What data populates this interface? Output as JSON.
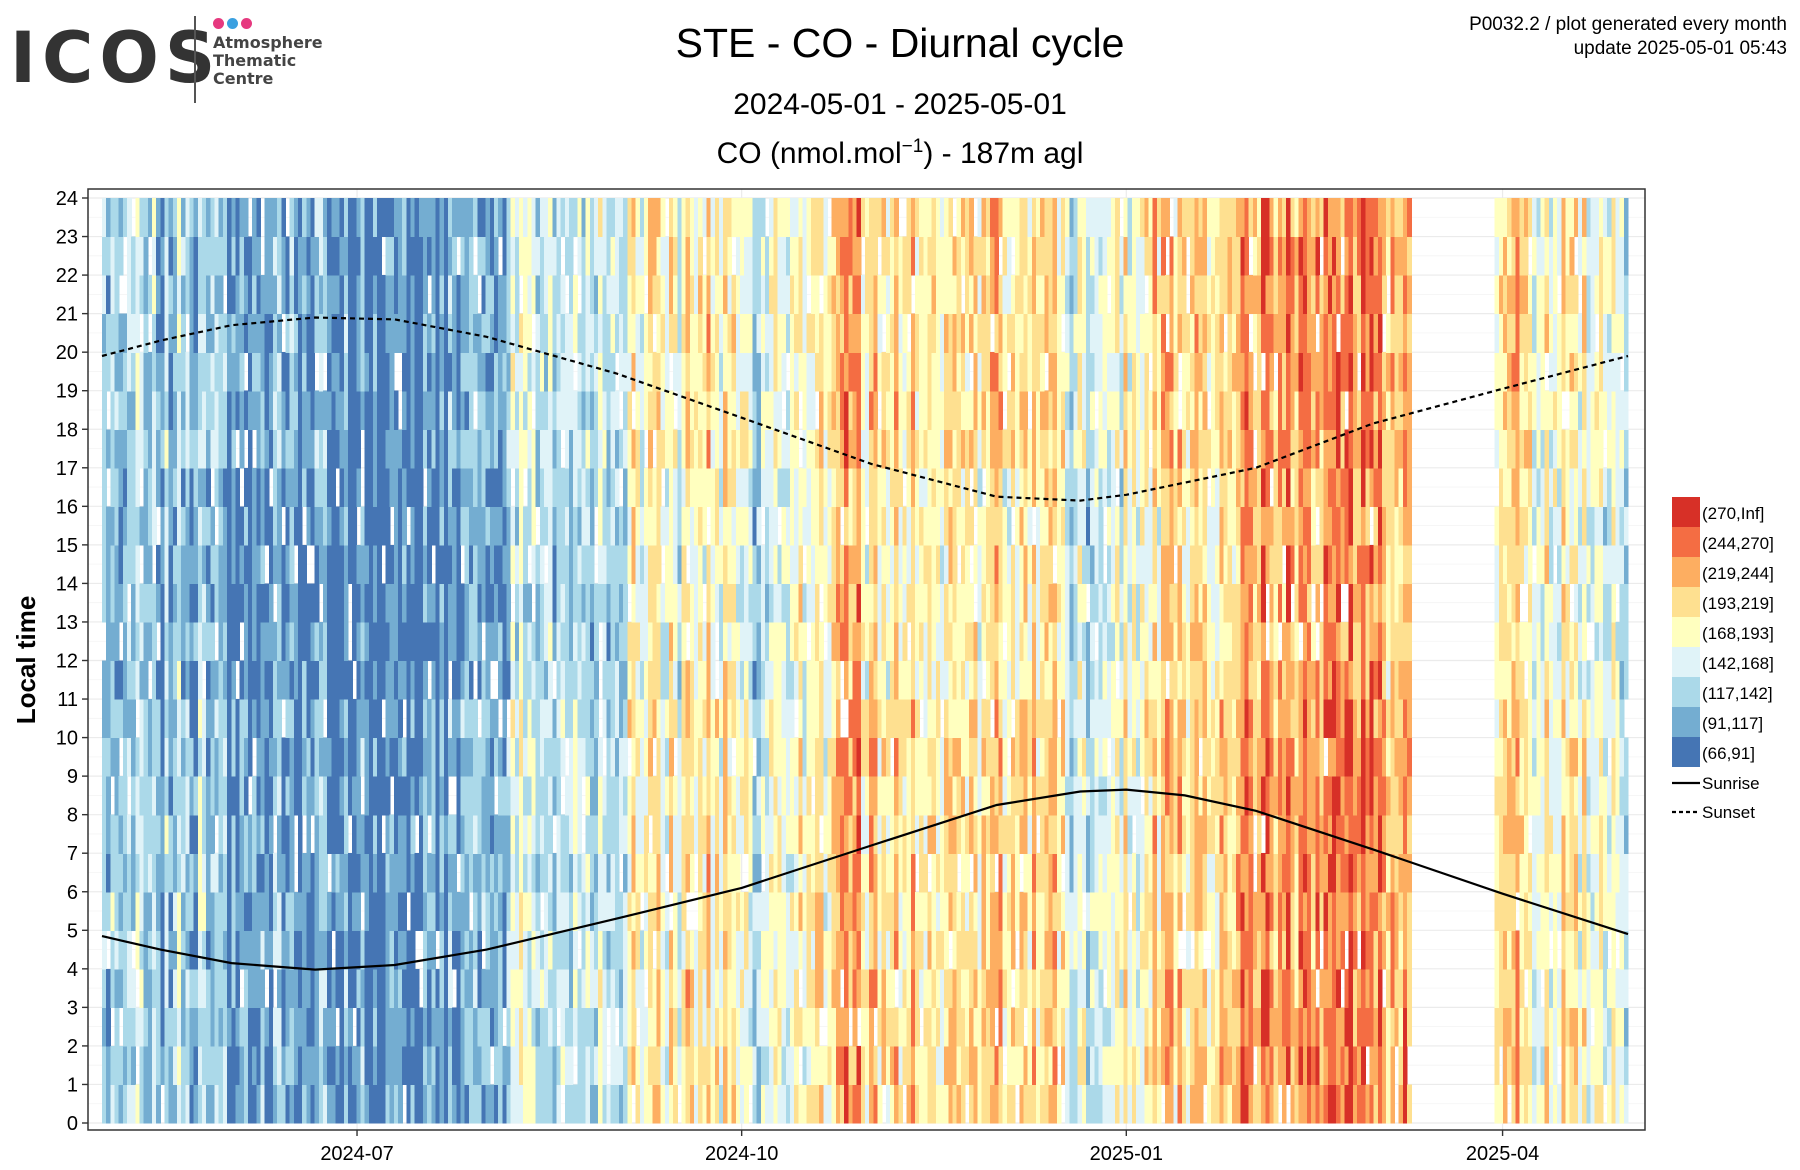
{
  "header": {
    "logo_text": "ICOS",
    "logo_sub": [
      "Atmosphere",
      "Thematic",
      "Centre"
    ],
    "logo_dot_colors": [
      "#e6397f",
      "#3aa0e0",
      "#e6397f"
    ],
    "title": "STE - CO - Diurnal cycle",
    "subtitle": "2024-05-01 - 2025-05-01",
    "unit_prefix": "CO (nmol.mol",
    "unit_exp": "−1",
    "unit_suffix": ") - 187m agl",
    "corner_line1": "P0032.2 / plot generated every month",
    "corner_line2": "update  2025-05-01 05:43"
  },
  "chart_data": {
    "type": "heatmap",
    "title": "STE - CO - Diurnal cycle",
    "subtitle": "2024-05-01 - 2025-05-01",
    "ylabel": "Local time",
    "xlabel": "",
    "x_range": [
      "2024-05-01",
      "2025-05-01"
    ],
    "ylim": [
      0,
      24
    ],
    "x_ticks": [
      "2024-07",
      "2024-10",
      "2025-01",
      "2025-04"
    ],
    "y_ticks": [
      "0",
      "1",
      "2",
      "3",
      "4",
      "5",
      "6",
      "7",
      "8",
      "9",
      "10",
      "11",
      "12",
      "13",
      "14",
      "15",
      "16",
      "17",
      "18",
      "19",
      "20",
      "21",
      "22",
      "23",
      "24"
    ],
    "grid": true,
    "legend_position": "right",
    "bins": [
      {
        "label": "(270,Inf]",
        "color": "#d73027"
      },
      {
        "label": "(244,270]",
        "color": "#f46d43"
      },
      {
        "label": "(219,244]",
        "color": "#fdae61"
      },
      {
        "label": "(193,219]",
        "color": "#fee090"
      },
      {
        "label": "(168,193]",
        "color": "#ffffbf"
      },
      {
        "label": "(142,168]",
        "color": "#e0f3f8"
      },
      {
        "label": "(117,142]",
        "color": "#abd9e9"
      },
      {
        "label": "(91,117]",
        "color": "#74add1"
      },
      {
        "label": "(66,91]",
        "color": "#4575b4"
      }
    ],
    "lines": [
      {
        "name": "Sunrise",
        "style": "solid",
        "points": [
          [
            "2024-05-01",
            4.85
          ],
          [
            "2024-05-15",
            4.5
          ],
          [
            "2024-06-01",
            4.15
          ],
          [
            "2024-06-21",
            3.98
          ],
          [
            "2024-07-10",
            4.1
          ],
          [
            "2024-08-01",
            4.5
          ],
          [
            "2024-09-01",
            5.3
          ],
          [
            "2024-10-01",
            6.1
          ],
          [
            "2024-11-01",
            7.2
          ],
          [
            "2024-12-01",
            8.25
          ],
          [
            "2024-12-21",
            8.6
          ],
          [
            "2025-01-01",
            8.65
          ],
          [
            "2025-01-15",
            8.5
          ],
          [
            "2025-02-01",
            8.1
          ],
          [
            "2025-03-01",
            7.1
          ],
          [
            "2025-04-01",
            5.95
          ],
          [
            "2025-05-01",
            4.9
          ]
        ]
      },
      {
        "name": "Sunset",
        "style": "dashed",
        "points": [
          [
            "2024-05-01",
            19.9
          ],
          [
            "2024-05-15",
            20.3
          ],
          [
            "2024-06-01",
            20.7
          ],
          [
            "2024-06-21",
            20.9
          ],
          [
            "2024-07-10",
            20.85
          ],
          [
            "2024-08-01",
            20.4
          ],
          [
            "2024-09-01",
            19.45
          ],
          [
            "2024-10-01",
            18.3
          ],
          [
            "2024-11-01",
            17.1
          ],
          [
            "2024-12-01",
            16.25
          ],
          [
            "2024-12-21",
            16.15
          ],
          [
            "2025-01-01",
            16.3
          ],
          [
            "2025-02-01",
            17.0
          ],
          [
            "2025-03-01",
            18.15
          ],
          [
            "2025-04-01",
            19.05
          ],
          [
            "2025-05-01",
            19.9
          ]
        ]
      }
    ],
    "data_gaps": [
      [
        "2025-03-11",
        "2025-03-31"
      ]
    ],
    "column_mean_bins_weekly": [
      6,
      6,
      6,
      6,
      7,
      7,
      7,
      7,
      7,
      8,
      8,
      7,
      7,
      7,
      5,
      5,
      5,
      5,
      4,
      4,
      3,
      4,
      5,
      4,
      4,
      2,
      3,
      3,
      4,
      4,
      3,
      3,
      3,
      5,
      5,
      4,
      3,
      3,
      3,
      2,
      2,
      2,
      1,
      1,
      2,
      2,
      2,
      3,
      3,
      4,
      4,
      4,
      6,
      6,
      6
    ]
  }
}
